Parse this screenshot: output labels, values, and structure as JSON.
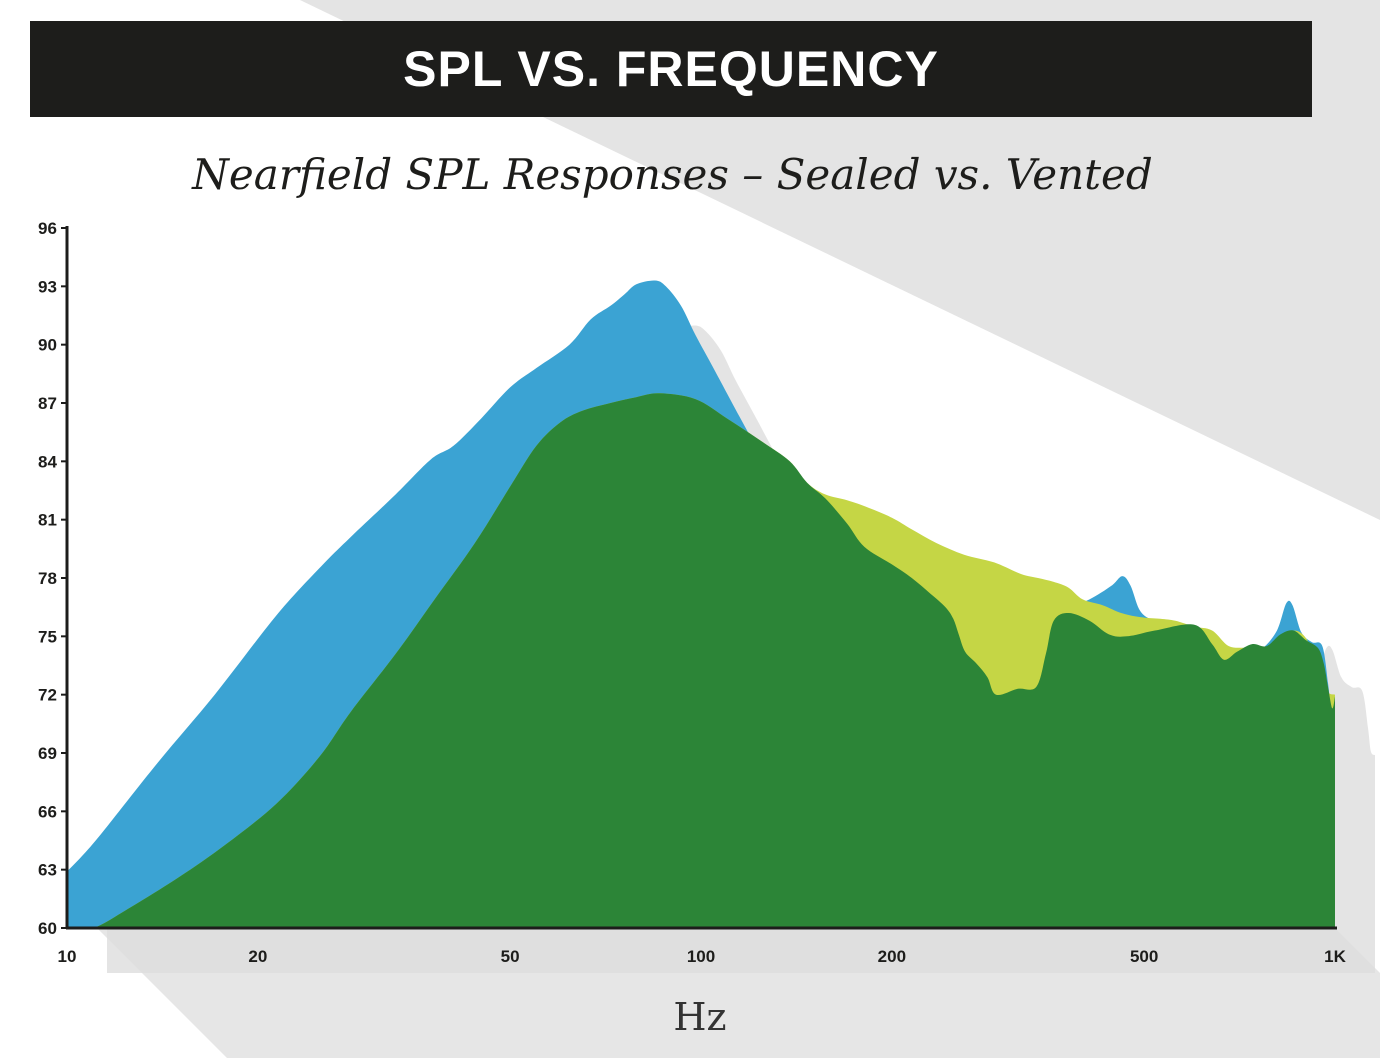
{
  "header": {
    "title": "SPL VS. FREQUENCY"
  },
  "chart_data": {
    "type": "area",
    "title": "Nearfield SPL Responses – Sealed vs. Vented",
    "xlabel": "Hz",
    "ylabel": "",
    "xscale": "log",
    "xlim": [
      10,
      1000
    ],
    "ylim": [
      60,
      96
    ],
    "x_ticks": [
      {
        "value": 10,
        "label": "10"
      },
      {
        "value": 20,
        "label": "20"
      },
      {
        "value": 50,
        "label": "50"
      },
      {
        "value": 100,
        "label": "100"
      },
      {
        "value": 200,
        "label": "200"
      },
      {
        "value": 500,
        "label": "500"
      },
      {
        "value": 1000,
        "label": "1K"
      }
    ],
    "y_ticks": [
      60,
      63,
      66,
      69,
      72,
      75,
      78,
      81,
      84,
      87,
      90,
      93,
      96
    ],
    "grid": false,
    "legend": "none",
    "colors": {
      "blue": "#3ba3d3",
      "yellow": "#c5d645",
      "green": "#2c8537",
      "shadow": "#dddddd",
      "axis": "#1d1d1b"
    },
    "series": [
      {
        "color": "blue",
        "points": [
          [
            10,
            62.9
          ],
          [
            11.1,
            64.5
          ],
          [
            13.9,
            68.5
          ],
          [
            17.1,
            72.0
          ],
          [
            21.3,
            76.0
          ],
          [
            25,
            78.5
          ],
          [
            28,
            80.1
          ],
          [
            33,
            82.3
          ],
          [
            37.5,
            84.1
          ],
          [
            40.7,
            84.8
          ],
          [
            45,
            86.2
          ],
          [
            50,
            87.8
          ],
          [
            55,
            88.8
          ],
          [
            62,
            90.0
          ],
          [
            67,
            91.3
          ],
          [
            72,
            92.0
          ],
          [
            75.8,
            92.6
          ],
          [
            79,
            93.1
          ],
          [
            84.6,
            93.3
          ],
          [
            88,
            93.0
          ],
          [
            93,
            92.0
          ],
          [
            98,
            90.5
          ],
          [
            105,
            88.7
          ],
          [
            115,
            86.3
          ],
          [
            123,
            84.6
          ],
          [
            128,
            83.8
          ],
          [
            138,
            82.4
          ],
          [
            147,
            81.2
          ],
          [
            159,
            80.2
          ],
          [
            163,
            79.8
          ],
          [
            174,
            79.1
          ],
          [
            180,
            78.8
          ],
          [
            190,
            78.4
          ],
          [
            201,
            77.9
          ],
          [
            210,
            77.4
          ],
          [
            227,
            75.9
          ],
          [
            234,
            75.1
          ],
          [
            250,
            74.3
          ],
          [
            255,
            73.9
          ],
          [
            267,
            73.2
          ],
          [
            273,
            72.6
          ],
          [
            278,
            72.1
          ],
          [
            290,
            72.4
          ],
          [
            316,
            72.5
          ],
          [
            329,
            72.7
          ],
          [
            338,
            74.0
          ],
          [
            350,
            75.3
          ],
          [
            360,
            76.0
          ],
          [
            380,
            76.5
          ],
          [
            410,
            76.9
          ],
          [
            444,
            77.6
          ],
          [
            462,
            78.1
          ],
          [
            476,
            77.6
          ],
          [
            491,
            76.4
          ],
          [
            510,
            75.9
          ],
          [
            545,
            75.6
          ],
          [
            600,
            75.3
          ],
          [
            630,
            74.2
          ],
          [
            660,
            74.0
          ],
          [
            705,
            74.2
          ],
          [
            744,
            74.3
          ],
          [
            770,
            74.4
          ],
          [
            810,
            75.3
          ],
          [
            838,
            76.7
          ],
          [
            857,
            76.6
          ],
          [
            885,
            75.2
          ],
          [
            920,
            74.7
          ],
          [
            955,
            74.5
          ],
          [
            975,
            72.6
          ],
          [
            985,
            71.4
          ],
          [
            1000,
            71.2
          ]
        ]
      },
      {
        "color": "yellow",
        "points": [
          [
            10,
            60.0
          ],
          [
            11.0,
            60.0
          ],
          [
            12.5,
            61.0
          ],
          [
            15.0,
            62.6
          ],
          [
            17.8,
            64.3
          ],
          [
            21.4,
            66.4
          ],
          [
            25,
            68.8
          ],
          [
            28,
            71.1
          ],
          [
            33,
            74.1
          ],
          [
            38,
            76.9
          ],
          [
            44,
            79.8
          ],
          [
            50,
            82.7
          ],
          [
            55,
            84.8
          ],
          [
            60,
            86.0
          ],
          [
            65,
            86.6
          ],
          [
            72,
            87.0
          ],
          [
            79,
            87.3
          ],
          [
            86,
            87.5
          ],
          [
            98,
            87.2
          ],
          [
            110,
            86.2
          ],
          [
            125,
            85.0
          ],
          [
            138,
            84.0
          ],
          [
            147,
            82.9
          ],
          [
            157,
            82.3
          ],
          [
            170,
            82.0
          ],
          [
            181,
            81.7
          ],
          [
            200,
            81.1
          ],
          [
            215,
            80.5
          ],
          [
            235,
            79.8
          ],
          [
            260,
            79.2
          ],
          [
            290,
            78.8
          ],
          [
            320,
            78.2
          ],
          [
            340,
            78.0
          ],
          [
            360,
            77.8
          ],
          [
            380,
            77.5
          ],
          [
            400,
            76.9
          ],
          [
            430,
            76.6
          ],
          [
            460,
            76.2
          ],
          [
            490,
            76.0
          ],
          [
            530,
            75.9
          ],
          [
            560,
            75.8
          ],
          [
            600,
            75.5
          ],
          [
            640,
            75.3
          ],
          [
            680,
            74.5
          ],
          [
            730,
            74.4
          ],
          [
            780,
            74.2
          ],
          [
            820,
            74.8
          ],
          [
            860,
            75.3
          ],
          [
            900,
            74.9
          ],
          [
            940,
            73.5
          ],
          [
            970,
            72.2
          ],
          [
            1000,
            72.0
          ]
        ]
      },
      {
        "color": "green",
        "points": [
          [
            10,
            60.0
          ],
          [
            11.0,
            60.0
          ],
          [
            12.5,
            61.0
          ],
          [
            15.0,
            62.6
          ],
          [
            17.8,
            64.3
          ],
          [
            21.4,
            66.4
          ],
          [
            25,
            68.8
          ],
          [
            28,
            71.1
          ],
          [
            33,
            74.1
          ],
          [
            38,
            76.9
          ],
          [
            44,
            79.8
          ],
          [
            50,
            82.7
          ],
          [
            55,
            84.8
          ],
          [
            60,
            86.0
          ],
          [
            65,
            86.6
          ],
          [
            72,
            87.0
          ],
          [
            79,
            87.3
          ],
          [
            86,
            87.5
          ],
          [
            98,
            87.2
          ],
          [
            110,
            86.2
          ],
          [
            125,
            85.0
          ],
          [
            138,
            84.0
          ],
          [
            147,
            82.9
          ],
          [
            157,
            82.1
          ],
          [
            170,
            80.8
          ],
          [
            181,
            79.6
          ],
          [
            200,
            78.7
          ],
          [
            215,
            78.0
          ],
          [
            230,
            77.2
          ],
          [
            243,
            76.5
          ],
          [
            250,
            75.9
          ],
          [
            255,
            75.1
          ],
          [
            261,
            74.2
          ],
          [
            272,
            73.6
          ],
          [
            283,
            72.9
          ],
          [
            292,
            72.0
          ],
          [
            316,
            72.3
          ],
          [
            338,
            72.4
          ],
          [
            350,
            74.1
          ],
          [
            360,
            75.8
          ],
          [
            380,
            76.2
          ],
          [
            410,
            75.8
          ],
          [
            440,
            75.1
          ],
          [
            470,
            75.0
          ],
          [
            520,
            75.3
          ],
          [
            600,
            75.6
          ],
          [
            640,
            74.6
          ],
          [
            668,
            73.8
          ],
          [
            700,
            74.2
          ],
          [
            740,
            74.6
          ],
          [
            780,
            74.5
          ],
          [
            820,
            75.1
          ],
          [
            860,
            75.3
          ],
          [
            900,
            74.8
          ],
          [
            940,
            74.4
          ],
          [
            960,
            73.6
          ],
          [
            975,
            72.4
          ],
          [
            990,
            71.3
          ],
          [
            1000,
            71.9
          ]
        ]
      }
    ]
  }
}
